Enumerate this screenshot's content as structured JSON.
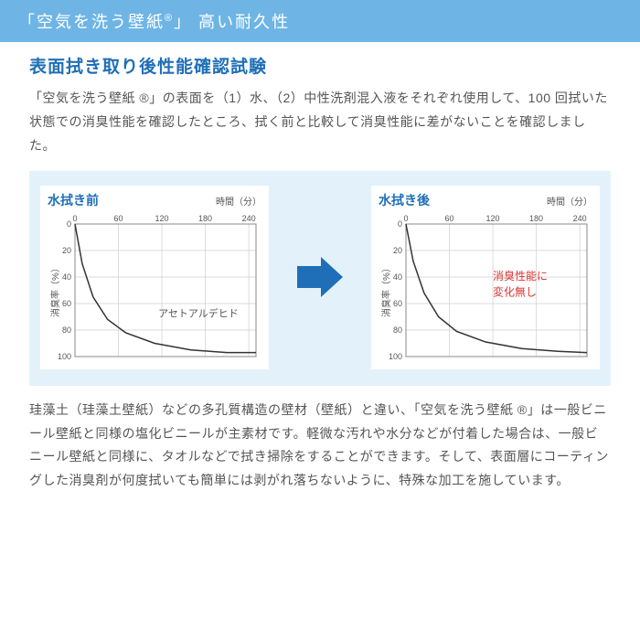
{
  "header": {
    "title_pre": "「空気を洗う壁紙",
    "title_r": "®",
    "title_post": "」 高い耐久性"
  },
  "subtitle": "表面拭き取り後性能確認試験",
  "intro": "「空気を洗う壁紙 ®」の表面を（1）水、（2）中性洗剤混入液をそれぞれ使用して、100 回拭いた状態での消臭性能を確認したところ、拭く前と比較して消臭性能に差がないことを確認しました。",
  "chart_before": {
    "title": "水拭き前",
    "x_unit": "時間（分）",
    "y_label": "消臭率（%）",
    "x_ticks": [
      0,
      60,
      120,
      180,
      240
    ],
    "y_ticks": [
      0,
      20,
      40,
      60,
      80,
      100
    ],
    "xlim": [
      0,
      250
    ],
    "ylim": [
      0,
      100
    ],
    "grid_color": "#cfcfcf",
    "line_color": "#333",
    "points_x": [
      0,
      10,
      25,
      45,
      70,
      110,
      160,
      210,
      250
    ],
    "points_y": [
      0,
      30,
      55,
      72,
      82,
      90,
      95,
      97,
      97
    ],
    "annotation": "アセトアルデヒド"
  },
  "chart_after": {
    "title": "水拭き後",
    "x_unit": "時間（分）",
    "y_label": "消臭率（%）",
    "x_ticks": [
      0,
      60,
      120,
      180,
      240
    ],
    "y_ticks": [
      0,
      20,
      40,
      60,
      80,
      100
    ],
    "xlim": [
      0,
      250
    ],
    "ylim": [
      0,
      100
    ],
    "grid_color": "#cfcfcf",
    "line_color": "#333",
    "points_x": [
      0,
      10,
      25,
      45,
      70,
      110,
      160,
      210,
      250
    ],
    "points_y": [
      0,
      28,
      52,
      70,
      81,
      89,
      94,
      96,
      97
    ],
    "annotation_line1": "消臭性能に",
    "annotation_line2": "変化無し"
  },
  "footer": "珪藻土（珪藻土壁紙）などの多孔質構造の壁材（壁紙）と違い、「空気を洗う壁紙 ®」は一般ビニール壁紙と同様の塩化ビニールが主素材です。軽微な汚れや水分などが付着した場合は、一般ビニール壁紙と同様に、タオルなどで拭き掃除をすることができます。そして、表面層にコーティングした消臭剤が何度拭いても簡単には剥がれ落ちないように、特殊な加工を施しています。"
}
